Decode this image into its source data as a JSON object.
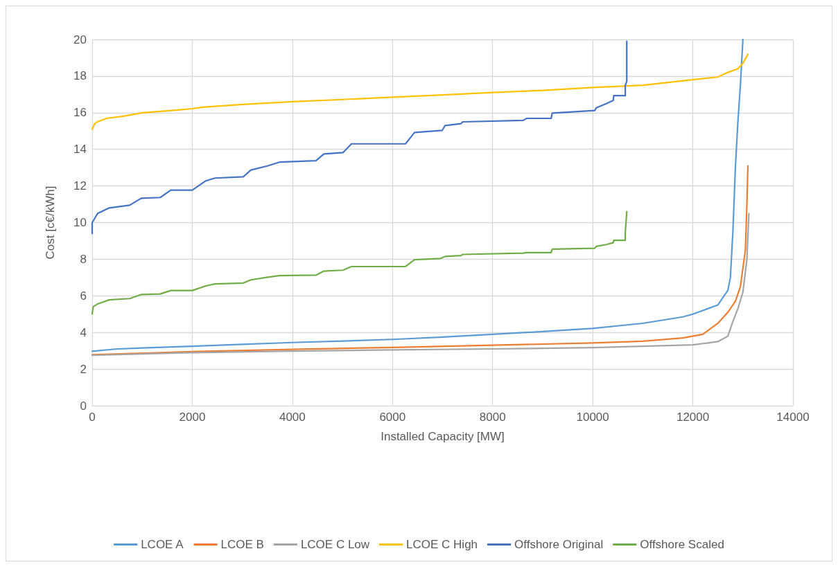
{
  "chart_data": {
    "type": "line",
    "xlabel": "Installed Capacity [MW]",
    "ylabel": "Cost [c€/kWh]",
    "xlim": [
      0,
      14000
    ],
    "xticks": [
      0,
      2000,
      4000,
      6000,
      8000,
      10000,
      12000,
      14000
    ],
    "ylim": [
      0,
      20
    ],
    "yticks": [
      0,
      2,
      4,
      6,
      8,
      10,
      12,
      14,
      16,
      18,
      20
    ],
    "grid": true,
    "legend": "bottom",
    "marker": "none",
    "line_style": "solid",
    "series": [
      {
        "name": "LCOE A",
        "color": "#5b9bd5",
        "x": [
          0,
          500,
          1000,
          2000,
          3000,
          4000,
          5000,
          6000,
          7000,
          8000,
          9000,
          10000,
          11000,
          11800,
          12000,
          12200,
          12500,
          12600,
          12700,
          12750,
          12800,
          12850,
          12900,
          12950,
          13000
        ],
        "values": [
          2.97,
          3.1,
          3.15,
          3.25,
          3.35,
          3.45,
          3.53,
          3.62,
          3.75,
          3.9,
          4.05,
          4.22,
          4.5,
          4.85,
          5.0,
          5.2,
          5.5,
          5.9,
          6.3,
          7,
          9.5,
          13,
          15.5,
          17.5,
          20
        ]
      },
      {
        "name": "LCOE B",
        "color": "#ed7d31",
        "x": [
          0,
          2000,
          4000,
          6000,
          8000,
          10000,
          11000,
          11800,
          12200,
          12500,
          12700,
          12850,
          12950,
          13000,
          13050,
          13080,
          13100
        ],
        "values": [
          2.78,
          2.95,
          3.08,
          3.18,
          3.3,
          3.43,
          3.52,
          3.7,
          3.9,
          4.5,
          5.1,
          5.7,
          6.5,
          7.5,
          8.5,
          11,
          13.1
        ]
      },
      {
        "name": "LCOE C Low",
        "color": "#a5a5a5",
        "x": [
          0,
          2000,
          4000,
          6000,
          8000,
          10000,
          12000,
          12500,
          12700,
          12800,
          12900,
          13000,
          13080,
          13120
        ],
        "values": [
          2.75,
          2.9,
          2.98,
          3.05,
          3.1,
          3.17,
          3.32,
          3.5,
          3.8,
          4.6,
          5.3,
          6.2,
          8,
          10.5
        ]
      },
      {
        "name": "LCOE C High",
        "color": "#ffc000",
        "x": [
          0,
          50,
          100,
          300,
          600,
          1000,
          1500,
          2000,
          2200,
          3000,
          4000,
          5000,
          6000,
          7000,
          8000,
          9000,
          10000,
          11000,
          12000,
          12500,
          12700,
          12900,
          13000,
          13100
        ],
        "values": [
          15.1,
          15.4,
          15.5,
          15.7,
          15.8,
          16.0,
          16.1,
          16.22,
          16.3,
          16.45,
          16.6,
          16.72,
          16.85,
          16.97,
          17.1,
          17.22,
          17.38,
          17.5,
          17.8,
          17.95,
          18.2,
          18.4,
          18.7,
          19.2
        ]
      },
      {
        "name": "Offshore Original",
        "color": "#4472c4",
        "x": [
          0,
          0,
          110,
          340,
          750,
          980,
          1360,
          1570,
          2000,
          2270,
          2450,
          3020,
          3170,
          3510,
          3740,
          4470,
          4630,
          5010,
          5180,
          6260,
          6440,
          6990,
          7050,
          7370,
          7400,
          8610,
          8680,
          9170,
          9190,
          10040,
          10070,
          10270,
          10410,
          10420,
          10650,
          10650,
          10680,
          10680
        ],
        "values": [
          9.4,
          10.0,
          10.5,
          10.8,
          10.95,
          11.33,
          11.37,
          11.77,
          11.77,
          12.28,
          12.43,
          12.5,
          12.87,
          13.1,
          13.3,
          13.38,
          13.75,
          13.82,
          14.3,
          14.3,
          14.92,
          15.03,
          15.3,
          15.4,
          15.5,
          15.58,
          15.69,
          15.69,
          15.98,
          16.12,
          16.27,
          16.49,
          16.67,
          16.93,
          16.93,
          17.48,
          17.73,
          19.9
        ]
      },
      {
        "name": "Offshore Scaled",
        "color": "#70ad47",
        "x": [
          0,
          20,
          110,
          340,
          750,
          980,
          1360,
          1570,
          2000,
          2270,
          2450,
          3020,
          3170,
          3510,
          3740,
          4470,
          4630,
          5010,
          5180,
          6260,
          6440,
          6960,
          7050,
          7370,
          7400,
          8610,
          8680,
          9170,
          9190,
          10040,
          10070,
          10270,
          10410,
          10420,
          10650,
          10650,
          10680
        ],
        "values": [
          5.0,
          5.4,
          5.56,
          5.78,
          5.85,
          6.07,
          6.1,
          6.29,
          6.29,
          6.54,
          6.65,
          6.7,
          6.87,
          7.02,
          7.1,
          7.13,
          7.35,
          7.4,
          7.6,
          7.6,
          7.97,
          8.04,
          8.15,
          8.2,
          8.26,
          8.33,
          8.36,
          8.36,
          8.55,
          8.6,
          8.7,
          8.8,
          8.9,
          9.03,
          9.03,
          9.43,
          10.6
        ]
      }
    ]
  }
}
